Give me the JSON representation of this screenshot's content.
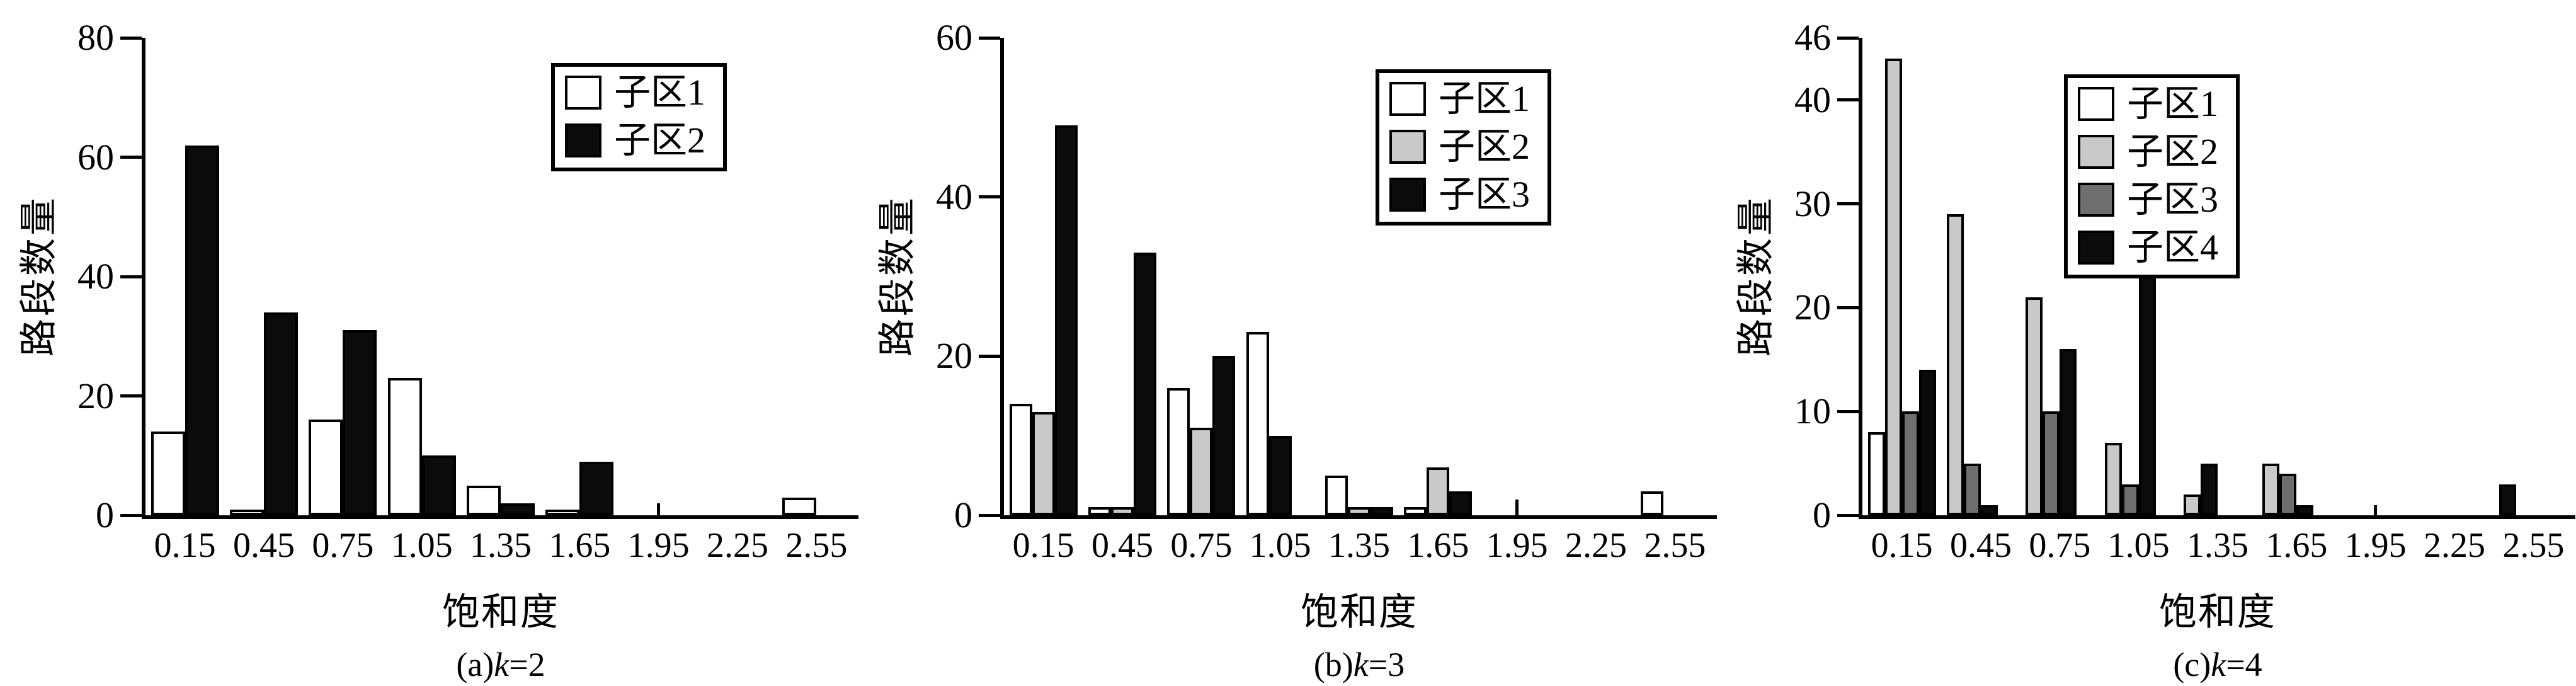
{
  "figure": {
    "xlabel": "饱和度",
    "ylabel": "路段数量",
    "categories": [
      "0.15",
      "0.45",
      "0.75",
      "1.05",
      "1.35",
      "1.65",
      "1.95",
      "2.25",
      "2.55"
    ],
    "colors": {
      "white": "#ffffff",
      "light_gray": "#c9c9c9",
      "dark_gray": "#6f6f6f",
      "black": "#0b0b0b",
      "axis": "#000000"
    }
  },
  "chart_data": [
    {
      "type": "bar",
      "panel": "a",
      "caption_parts": [
        "(a)",
        "k",
        "=2"
      ],
      "xlabel": "饱和度",
      "ylabel": "路段数量",
      "ylim": [
        0,
        80
      ],
      "yticks": [
        0,
        20,
        40,
        60,
        80
      ],
      "grid": false,
      "legend_position": "upper-right-inside",
      "categories": [
        "0.15",
        "0.45",
        "0.75",
        "1.05",
        "1.35",
        "1.65",
        "1.95",
        "2.25",
        "2.55"
      ],
      "series": [
        {
          "name": "子区1",
          "color_key": "white",
          "values": [
            14,
            1,
            16,
            23,
            5,
            1,
            0,
            0,
            3
          ]
        },
        {
          "name": "子区2",
          "color_key": "black",
          "values": [
            62,
            34,
            31,
            10,
            2,
            9,
            0,
            0,
            0
          ]
        }
      ],
      "spike": {
        "category": "1.95",
        "category_index": 6,
        "value": 2
      }
    },
    {
      "type": "bar",
      "panel": "b",
      "caption_parts": [
        "(b)",
        "k",
        "=3"
      ],
      "xlabel": "饱和度",
      "ylabel": "路段数量",
      "ylim": [
        0,
        60
      ],
      "yticks": [
        0,
        20,
        40,
        60
      ],
      "grid": false,
      "legend_position": "upper-right-inside",
      "categories": [
        "0.15",
        "0.45",
        "0.75",
        "1.05",
        "1.35",
        "1.65",
        "1.95",
        "2.25",
        "2.55"
      ],
      "series": [
        {
          "name": "子区1",
          "color_key": "white",
          "values": [
            14,
            1,
            16,
            23,
            5,
            1,
            0,
            0,
            3
          ]
        },
        {
          "name": "子区2",
          "color_key": "light_gray",
          "values": [
            13,
            1,
            11,
            0,
            1,
            6,
            0,
            0,
            0
          ]
        },
        {
          "name": "子区3",
          "color_key": "black",
          "values": [
            49,
            33,
            20,
            10,
            1,
            3,
            0,
            0,
            0
          ]
        }
      ],
      "spike": {
        "category": "1.95",
        "category_index": 6,
        "value": 2
      }
    },
    {
      "type": "bar",
      "panel": "c",
      "caption_parts": [
        "(c)",
        "k",
        "=4"
      ],
      "xlabel": "饱和度",
      "ylabel": "路段数量",
      "ylim": [
        0,
        46
      ],
      "yticks": [
        0,
        10,
        20,
        30,
        40,
        46
      ],
      "grid": false,
      "legend_position": "upper-center-inside",
      "categories": [
        "0.15",
        "0.45",
        "0.75",
        "1.05",
        "1.35",
        "1.65",
        "1.95",
        "2.25",
        "2.55"
      ],
      "series": [
        {
          "name": "子区1",
          "color_key": "white",
          "values": [
            8,
            0,
            0,
            0,
            0,
            0,
            0,
            0,
            0
          ]
        },
        {
          "name": "子区2",
          "color_key": "light_gray",
          "values": [
            44,
            29,
            21,
            7,
            2,
            5,
            0,
            0,
            0
          ]
        },
        {
          "name": "子区3",
          "color_key": "dark_gray",
          "values": [
            10,
            5,
            10,
            3,
            0,
            4,
            0,
            0,
            0
          ]
        },
        {
          "name": "子区4",
          "color_key": "black",
          "values": [
            14,
            1,
            16,
            23,
            5,
            1,
            0,
            0,
            3
          ]
        }
      ],
      "spike": {
        "category": "1.95",
        "category_index": 6,
        "value": 1
      }
    }
  ]
}
